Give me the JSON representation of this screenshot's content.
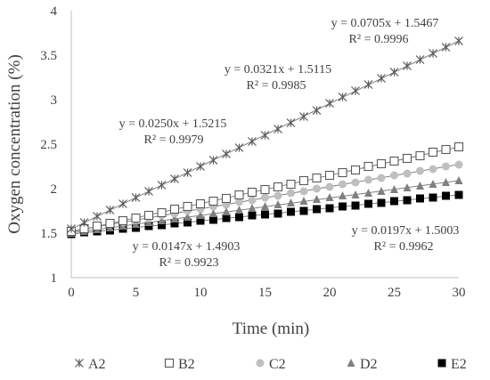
{
  "chart_data": {
    "type": "scatter",
    "xlabel": "Time (min)",
    "ylabel": "Oxygen concentration (%)",
    "xlim": [
      0,
      30
    ],
    "ylim": [
      1,
      4
    ],
    "x_ticks": [
      0,
      5,
      10,
      15,
      20,
      25,
      30
    ],
    "y_ticks": [
      1,
      1.5,
      2,
      2.5,
      3,
      3.5,
      4
    ],
    "x_tick_labels": [
      "0",
      "5",
      "10",
      "15",
      "20",
      "25",
      "30"
    ],
    "y_tick_labels": [
      "1",
      "1.5",
      "2",
      "2.5",
      "3",
      "3.5",
      "4"
    ],
    "grid": false,
    "legend_position": "bottom",
    "x": [
      0,
      1,
      2,
      3,
      4,
      5,
      6,
      7,
      8,
      9,
      10,
      11,
      12,
      13,
      14,
      15,
      16,
      17,
      18,
      19,
      20,
      21,
      22,
      23,
      24,
      25,
      26,
      27,
      28,
      29,
      30
    ],
    "series": [
      {
        "name": "A2",
        "marker": "asterisk",
        "color": "#595959",
        "trendline": true,
        "equation": "y = 0.0705x + 1.5467",
        "r2": "R² = 0.9996",
        "values": [
          1.55,
          1.62,
          1.69,
          1.76,
          1.83,
          1.9,
          1.97,
          2.04,
          2.11,
          2.18,
          2.25,
          2.32,
          2.39,
          2.46,
          2.53,
          2.6,
          2.67,
          2.74,
          2.81,
          2.88,
          2.96,
          3.03,
          3.1,
          3.17,
          3.24,
          3.31,
          3.38,
          3.45,
          3.52,
          3.59,
          3.66
        ]
      },
      {
        "name": "B2",
        "marker": "open-square",
        "color": "#595959",
        "trendline": true,
        "equation": "y = 0.0321x + 1.5115",
        "r2": "R² = 0.9985",
        "values": [
          1.52,
          1.55,
          1.58,
          1.61,
          1.64,
          1.67,
          1.7,
          1.73,
          1.77,
          1.8,
          1.83,
          1.86,
          1.89,
          1.93,
          1.96,
          1.99,
          2.02,
          2.05,
          2.09,
          2.12,
          2.15,
          2.18,
          2.21,
          2.25,
          2.28,
          2.31,
          2.34,
          2.37,
          2.41,
          2.44,
          2.47
        ]
      },
      {
        "name": "C2",
        "marker": "circle",
        "color": "#bfbfbf",
        "trendline": true,
        "equation": "y = 0.0250x + 1.5215",
        "r2": "R² = 0.9979",
        "values": [
          1.52,
          1.55,
          1.57,
          1.6,
          1.62,
          1.65,
          1.67,
          1.7,
          1.72,
          1.75,
          1.77,
          1.8,
          1.82,
          1.85,
          1.87,
          1.9,
          1.92,
          1.95,
          1.97,
          2.0,
          2.02,
          2.05,
          2.07,
          2.1,
          2.12,
          2.15,
          2.17,
          2.2,
          2.22,
          2.25,
          2.27
        ]
      },
      {
        "name": "D2",
        "marker": "triangle",
        "color": "#7f7f7f",
        "trendline": true,
        "equation": "y = 0.0197x + 1.5003",
        "r2": "R² = 0.9962",
        "values": [
          1.5,
          1.52,
          1.54,
          1.56,
          1.58,
          1.6,
          1.62,
          1.64,
          1.66,
          1.68,
          1.7,
          1.72,
          1.74,
          1.76,
          1.78,
          1.8,
          1.82,
          1.84,
          1.86,
          1.88,
          1.9,
          1.92,
          1.93,
          1.95,
          1.97,
          1.99,
          2.01,
          2.03,
          2.05,
          2.07,
          2.09
        ]
      },
      {
        "name": "E2",
        "marker": "filled-square",
        "color": "#000000",
        "trendline": true,
        "equation": "y = 0.0147x + 1.4903",
        "r2": "R² = 0.9923",
        "values": [
          1.49,
          1.51,
          1.52,
          1.53,
          1.55,
          1.56,
          1.58,
          1.59,
          1.61,
          1.62,
          1.64,
          1.65,
          1.67,
          1.68,
          1.7,
          1.71,
          1.72,
          1.74,
          1.75,
          1.77,
          1.78,
          1.8,
          1.81,
          1.83,
          1.84,
          1.86,
          1.87,
          1.89,
          1.9,
          1.92,
          1.93
        ]
      }
    ],
    "annotations": [
      {
        "series": "A2",
        "equation": "y = 0.0705x + 1.5467",
        "r2": "R² = 0.9996"
      },
      {
        "series": "B2",
        "equation": "y = 0.0321x + 1.5115",
        "r2": "R² = 0.9985"
      },
      {
        "series": "C2",
        "equation": "y = 0.0250x + 1.5215",
        "r2": "R² = 0.9979"
      },
      {
        "series": "D2",
        "equation": "y = 0.0197x + 1.5003",
        "r2": "R² = 0.9962"
      },
      {
        "series": "E2",
        "equation": "y = 0.0147x + 1.4903",
        "r2": "R² = 0.9923"
      }
    ]
  }
}
